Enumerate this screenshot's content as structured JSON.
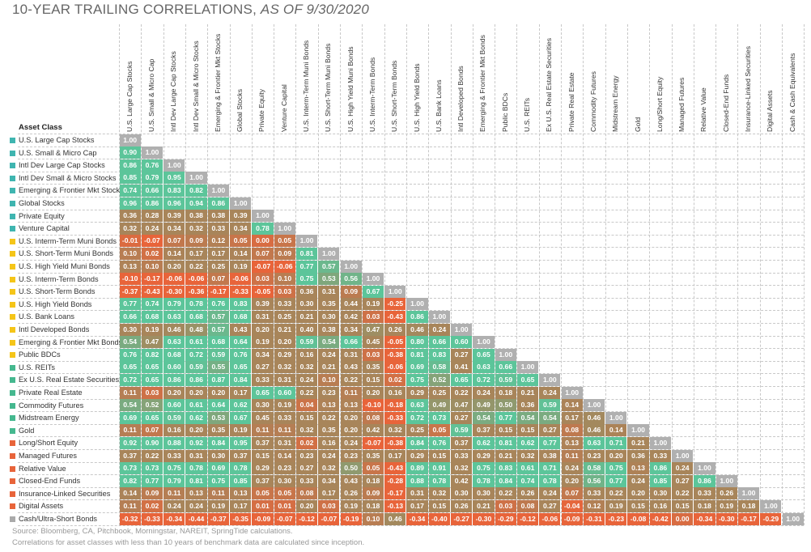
{
  "chart_data": {
    "type": "heatmap",
    "title": "10-YEAR TRAILING CORRELATIONS, ",
    "title_italic": "AS OF 9/30/2020",
    "row_header": "Asset Class",
    "columns": [
      "U.S. Large Cap Stocks",
      "U.S. Small & Micro Cap",
      "Intl Dev Large Cap Stocks",
      "Intl Dev Small & Micro Stocks",
      "Emerging & Frontier Mkt Stocks",
      "Global Stocks",
      "Private Equity",
      "Venture Capital",
      "U.S. Interm-Term Muni Bonds",
      "U.S. Short-Term Muni Bonds",
      "U.S. High Yield Muni Bonds",
      "U.S. Interm-Term Bonds",
      "U.S. Short-Term Bonds",
      "U.S. High Yield Bonds",
      "U.S. Bank Loans",
      "Intl Developed Bonds",
      "Emerging & Frontier Mkt Bonds",
      "Public BDCs",
      "U.S. REITs",
      "Ex U.S. Real Estate Securities",
      "Private Real Estate",
      "Commodity Futures",
      "Midstream Energy",
      "Gold",
      "Long/Short Equity",
      "Managed Futures",
      "Relative Value",
      "Closed-End Funds",
      "Insurance-Linked Securities",
      "Digital Assets",
      "Cash & Cash Equivalents"
    ],
    "rows": [
      {
        "label": "U.S. Large Cap Stocks",
        "group": "equity",
        "values": [
          "1.00"
        ]
      },
      {
        "label": "U.S. Small & Micro Cap",
        "group": "equity",
        "values": [
          "0.90",
          "1.00"
        ]
      },
      {
        "label": "Intl Dev Large Cap Stocks",
        "group": "equity",
        "values": [
          "0.86",
          "0.76",
          "1.00"
        ]
      },
      {
        "label": "Intl Dev Small & Micro Stocks",
        "group": "equity",
        "values": [
          "0.85",
          "0.79",
          "0.95",
          "1.00"
        ]
      },
      {
        "label": "Emerging & Frontier Mkt Stocks",
        "group": "equity",
        "values": [
          "0.74",
          "0.66",
          "0.83",
          "0.82",
          "1.00"
        ]
      },
      {
        "label": "Global Stocks",
        "group": "equity",
        "values": [
          "0.96",
          "0.86",
          "0.96",
          "0.94",
          "0.86",
          "1.00"
        ]
      },
      {
        "label": "Private Equity",
        "group": "equity",
        "values": [
          "0.36",
          "0.28",
          "0.39",
          "0.38",
          "0.38",
          "0.39",
          "1.00"
        ]
      },
      {
        "label": "Venture Capital",
        "group": "equity",
        "values": [
          "0.32",
          "0.24",
          "0.34",
          "0.32",
          "0.33",
          "0.34",
          "0.78",
          "1.00"
        ]
      },
      {
        "label": "U.S. Interm-Term Muni Bonds",
        "group": "fixed",
        "values": [
          "-0.01",
          "-0.07",
          "0.07",
          "0.09",
          "0.12",
          "0.05",
          "0.00",
          "0.05",
          "1.00"
        ]
      },
      {
        "label": "U.S. Short-Term Muni Bonds",
        "group": "fixed",
        "values": [
          "0.10",
          "0.02",
          "0.14",
          "0.17",
          "0.17",
          "0.14",
          "0.07",
          "0.09",
          "0.81",
          "1.00"
        ]
      },
      {
        "label": "U.S. High Yield Muni Bonds",
        "group": "fixed",
        "values": [
          "0.13",
          "0.10",
          "0.20",
          "0.22",
          "0.25",
          "0.19",
          "-0.07",
          "-0.06",
          "0.77",
          "0.57",
          "1.00"
        ]
      },
      {
        "label": "U.S. Interm-Term Bonds",
        "group": "fixed",
        "values": [
          "-0.10",
          "-0.17",
          "-0.06",
          "-0.06",
          "0.07",
          "-0.06",
          "0.03",
          "0.10",
          "0.75",
          "0.53",
          "0.56",
          "1.00"
        ]
      },
      {
        "label": "U.S. Short-Term Bonds",
        "group": "fixed",
        "values": [
          "-0.37",
          "-0.43",
          "-0.30",
          "-0.36",
          "-0.17",
          "-0.33",
          "-0.05",
          "0.03",
          "0.36",
          "0.31",
          "0.09",
          "0.67",
          "1.00"
        ]
      },
      {
        "label": "U.S. High Yield Bonds",
        "group": "fixed",
        "values": [
          "0.77",
          "0.74",
          "0.79",
          "0.78",
          "0.76",
          "0.83",
          "0.39",
          "0.33",
          "0.30",
          "0.35",
          "0.44",
          "0.19",
          "-0.25",
          "1.00"
        ]
      },
      {
        "label": "U.S. Bank Loans",
        "group": "fixed",
        "values": [
          "0.66",
          "0.68",
          "0.63",
          "0.68",
          "0.57",
          "0.68",
          "0.31",
          "0.25",
          "0.21",
          "0.30",
          "0.42",
          "0.03",
          "-0.43",
          "0.86",
          "1.00"
        ]
      },
      {
        "label": "Intl Developed Bonds",
        "group": "fixed",
        "values": [
          "0.30",
          "0.19",
          "0.46",
          "0.48",
          "0.57",
          "0.43",
          "0.20",
          "0.21",
          "0.40",
          "0.38",
          "0.34",
          "0.47",
          "0.26",
          "0.46",
          "0.24",
          "1.00"
        ]
      },
      {
        "label": "Emerging & Frontier Mkt Bonds",
        "group": "fixed",
        "values": [
          "0.54",
          "0.47",
          "0.63",
          "0.61",
          "0.68",
          "0.64",
          "0.19",
          "0.20",
          "0.59",
          "0.54",
          "0.66",
          "0.45",
          "-0.05",
          "0.80",
          "0.66",
          "0.60",
          "1.00"
        ]
      },
      {
        "label": "Public BDCs",
        "group": "fixed",
        "values": [
          "0.76",
          "0.82",
          "0.68",
          "0.72",
          "0.59",
          "0.76",
          "0.34",
          "0.29",
          "0.16",
          "0.24",
          "0.31",
          "0.03",
          "-0.38",
          "0.81",
          "0.83",
          "0.27",
          "0.65",
          "1.00"
        ]
      },
      {
        "label": "U.S. REITs",
        "group": "real",
        "values": [
          "0.65",
          "0.65",
          "0.60",
          "0.59",
          "0.55",
          "0.65",
          "0.27",
          "0.32",
          "0.32",
          "0.21",
          "0.43",
          "0.35",
          "-0.06",
          "0.69",
          "0.58",
          "0.41",
          "0.63",
          "0.66",
          "1.00"
        ]
      },
      {
        "label": "Ex U.S. Real Estate Securities",
        "group": "real",
        "values": [
          "0.72",
          "0.65",
          "0.86",
          "0.86",
          "0.87",
          "0.84",
          "0.33",
          "0.31",
          "0.24",
          "0.10",
          "0.22",
          "0.15",
          "0.02",
          "0.75",
          "0.52",
          "0.65",
          "0.72",
          "0.59",
          "0.65",
          "1.00"
        ]
      },
      {
        "label": "Private Real Estate",
        "group": "real",
        "values": [
          "0.11",
          "0.03",
          "0.20",
          "0.20",
          "0.20",
          "0.17",
          "0.65",
          "0.60",
          "0.22",
          "0.23",
          "0.11",
          "0.20",
          "0.16",
          "0.29",
          "0.25",
          "0.22",
          "0.24",
          "0.18",
          "0.21",
          "0.24",
          "1.00"
        ]
      },
      {
        "label": "Commodity Futures",
        "group": "real",
        "values": [
          "0.54",
          "0.52",
          "0.60",
          "0.61",
          "0.64",
          "0.62",
          "0.30",
          "0.19",
          "0.04",
          "0.13",
          "0.13",
          "-0.10",
          "-0.18",
          "0.63",
          "0.49",
          "0.47",
          "0.49",
          "0.50",
          "0.36",
          "0.59",
          "0.14",
          "1.00"
        ]
      },
      {
        "label": "Midstream Energy",
        "group": "real",
        "values": [
          "0.69",
          "0.65",
          "0.59",
          "0.62",
          "0.53",
          "0.67",
          "0.45",
          "0.33",
          "0.15",
          "0.22",
          "0.20",
          "0.08",
          "-0.33",
          "0.72",
          "0.73",
          "0.27",
          "0.54",
          "0.77",
          "0.54",
          "0.54",
          "0.17",
          "0.46",
          "1.00"
        ]
      },
      {
        "label": "Gold",
        "group": "real",
        "values": [
          "0.11",
          "0.07",
          "0.16",
          "0.20",
          "0.35",
          "0.19",
          "0.11",
          "0.11",
          "0.32",
          "0.35",
          "0.20",
          "0.42",
          "0.32",
          "0.25",
          "0.05",
          "0.59",
          "0.37",
          "0.15",
          "0.15",
          "0.27",
          "0.08",
          "0.46",
          "0.14",
          "1.00"
        ]
      },
      {
        "label": "Long/Short Equity",
        "group": "alt",
        "values": [
          "0.92",
          "0.90",
          "0.88",
          "0.92",
          "0.84",
          "0.95",
          "0.37",
          "0.31",
          "0.02",
          "0.16",
          "0.24",
          "-0.07",
          "-0.38",
          "0.84",
          "0.76",
          "0.37",
          "0.62",
          "0.81",
          "0.62",
          "0.77",
          "0.13",
          "0.63",
          "0.71",
          "0.21",
          "1.00"
        ]
      },
      {
        "label": "Managed Futures",
        "group": "alt",
        "values": [
          "0.37",
          "0.22",
          "0.33",
          "0.31",
          "0.30",
          "0.37",
          "0.15",
          "0.14",
          "0.23",
          "0.24",
          "0.23",
          "0.35",
          "0.17",
          "0.29",
          "0.15",
          "0.33",
          "0.29",
          "0.21",
          "0.32",
          "0.38",
          "0.11",
          "0.23",
          "0.20",
          "0.36",
          "0.33",
          "1.00"
        ]
      },
      {
        "label": "Relative Value",
        "group": "alt",
        "values": [
          "0.73",
          "0.73",
          "0.75",
          "0.78",
          "0.69",
          "0.78",
          "0.29",
          "0.23",
          "0.27",
          "0.32",
          "0.50",
          "0.05",
          "-0.43",
          "0.89",
          "0.91",
          "0.32",
          "0.75",
          "0.83",
          "0.61",
          "0.71",
          "0.24",
          "0.58",
          "0.75",
          "0.13",
          "0.86",
          "0.24",
          "1.00"
        ]
      },
      {
        "label": "Closed-End Funds",
        "group": "alt",
        "values": [
          "0.82",
          "0.77",
          "0.79",
          "0.81",
          "0.75",
          "0.85",
          "0.37",
          "0.30",
          "0.33",
          "0.34",
          "0.43",
          "0.18",
          "-0.28",
          "0.88",
          "0.78",
          "0.42",
          "0.78",
          "0.84",
          "0.74",
          "0.78",
          "0.20",
          "0.56",
          "0.77",
          "0.24",
          "0.85",
          "0.27",
          "0.86",
          "1.00"
        ]
      },
      {
        "label": "Insurance-Linked Securities",
        "group": "alt",
        "values": [
          "0.14",
          "0.09",
          "0.11",
          "0.13",
          "0.11",
          "0.13",
          "0.05",
          "0.05",
          "0.08",
          "0.17",
          "0.26",
          "0.09",
          "-0.17",
          "0.31",
          "0.32",
          "0.30",
          "0.30",
          "0.22",
          "0.26",
          "0.24",
          "0.07",
          "0.33",
          "0.22",
          "0.20",
          "0.30",
          "0.22",
          "0.33",
          "0.26",
          "1.00"
        ]
      },
      {
        "label": "Digital Assets",
        "group": "alt",
        "values": [
          "0.11",
          "0.02",
          "0.24",
          "0.24",
          "0.19",
          "0.17",
          "0.01",
          "0.01",
          "0.20",
          "0.03",
          "0.19",
          "0.18",
          "-0.13",
          "0.17",
          "0.15",
          "0.26",
          "0.21",
          "0.03",
          "0.08",
          "0.27",
          "-0.04",
          "0.12",
          "0.19",
          "0.15",
          "0.16",
          "0.15",
          "0.18",
          "0.19",
          "0.18",
          "1.00"
        ]
      },
      {
        "label": "Cash/Ultra-Short Bonds",
        "group": "cash",
        "values": [
          "-0.32",
          "-0.33",
          "-0.34",
          "-0.44",
          "-0.37",
          "-0.35",
          "-0.09",
          "-0.07",
          "-0.12",
          "-0.07",
          "-0.19",
          "0.10",
          "0.46",
          "-0.34",
          "-0.40",
          "-0.27",
          "-0.30",
          "-0.29",
          "-0.12",
          "-0.06",
          "-0.09",
          "-0.31",
          "-0.23",
          "-0.08",
          "-0.42",
          "0.00",
          "-0.34",
          "-0.30",
          "-0.17",
          "-0.29",
          "1.00"
        ]
      }
    ],
    "group_colors": {
      "equity": "#3fb5b0",
      "fixed": "#f5c518",
      "real": "#45b88f",
      "alt": "#e8643a",
      "cash": "#aaaaaa"
    },
    "scale_colors": {
      "high": "#5cc59a",
      "mid": "#a8855a",
      "low": "#e8643a",
      "diag": "#b0b0b0"
    },
    "value_range": [
      -0.44,
      1.0
    ]
  },
  "footnotes": [
    "Source: Bloomberg, CA, Pitchbook, Morningstar, NAREIT, SpringTide calculations.",
    "Correlations for asset classes with less than 10 years of benchmark data are calculated since inception."
  ]
}
